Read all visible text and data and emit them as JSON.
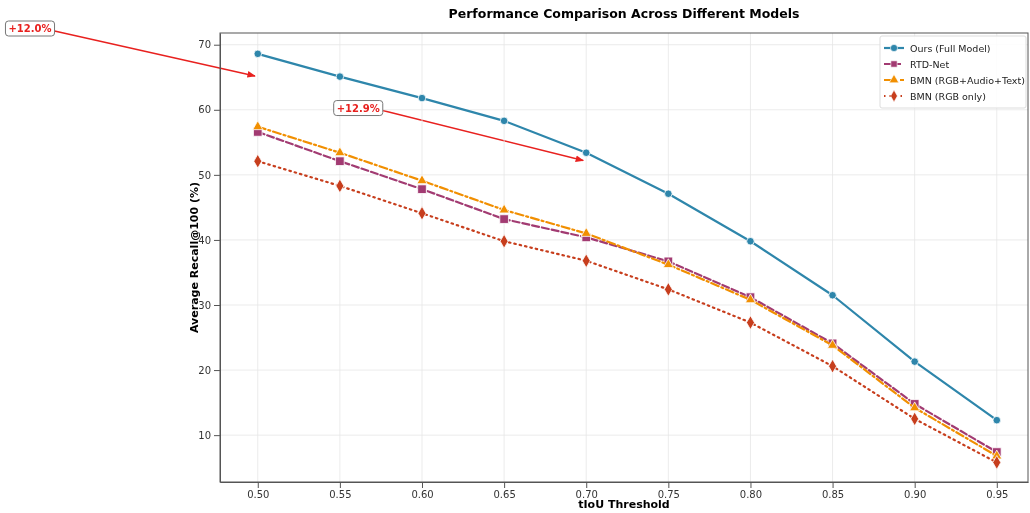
{
  "chart_data": {
    "type": "line",
    "title": "Performance Comparison Across Different Models",
    "xlabel": "tIoU Threshold",
    "ylabel": "Average Recall@100 (%)",
    "x": [
      0.5,
      0.55,
      0.6,
      0.65,
      0.7,
      0.75,
      0.8,
      0.85,
      0.9,
      0.95
    ],
    "series": [
      {
        "name": "Ours (Full Model)",
        "color": "#2e86ab",
        "marker": "circle",
        "line_style": "solid",
        "values": [
          68.6,
          65.1,
          61.8,
          58.3,
          53.4,
          47.1,
          39.8,
          31.5,
          21.3,
          12.3
        ]
      },
      {
        "name": "RTD-Net",
        "color": "#a23b72",
        "marker": "square",
        "line_style": "dashed",
        "values": [
          56.6,
          52.1,
          47.8,
          43.2,
          40.4,
          36.7,
          31.2,
          24.1,
          14.8,
          7.4
        ]
      },
      {
        "name": "BMN (RGB+Audio+Text)",
        "color": "#f18f01",
        "marker": "triangle",
        "line_style": "dashdot",
        "values": [
          57.4,
          53.4,
          49.1,
          44.6,
          41.0,
          36.2,
          30.8,
          23.8,
          14.2,
          6.8
        ]
      },
      {
        "name": "BMN (RGB only)",
        "color": "#c73e1d",
        "marker": "diamond",
        "line_style": "dotted",
        "values": [
          52.1,
          48.3,
          44.1,
          39.8,
          36.8,
          32.4,
          27.3,
          20.6,
          12.5,
          5.8
        ]
      }
    ],
    "xlim": [
      0.477,
      0.969
    ],
    "ylim": [
      2.8,
      71.8
    ],
    "xticks": [
      {
        "value": 0.5,
        "label": "0.50"
      },
      {
        "value": 0.55,
        "label": "0.55"
      },
      {
        "value": 0.6,
        "label": "0.60"
      },
      {
        "value": 0.65,
        "label": "0.65"
      },
      {
        "value": 0.7,
        "label": "0.70"
      },
      {
        "value": 0.75,
        "label": "0.75"
      },
      {
        "value": 0.8,
        "label": "0.80"
      },
      {
        "value": 0.85,
        "label": "0.85"
      },
      {
        "value": 0.9,
        "label": "0.90"
      },
      {
        "value": 0.95,
        "label": "0.95"
      }
    ],
    "yticks": [
      10,
      20,
      30,
      40,
      50,
      60,
      70
    ],
    "grid": true,
    "legend": "top right",
    "annotations": [
      "+12.0%",
      {
        "text": "+12.9%",
        "x": 0.7,
        "y": 52.2
      }
    ]
  }
}
